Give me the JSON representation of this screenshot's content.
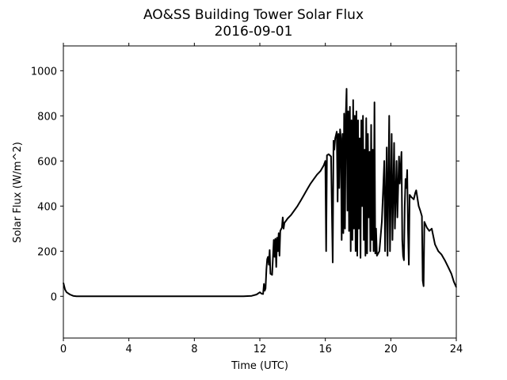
{
  "chart_data": {
    "type": "line",
    "title": "AO&SS Building Tower Solar Flux",
    "subtitle": "2016-09-01",
    "xlabel": "Time (UTC)",
    "ylabel": "Solar Flux (W/m^2)",
    "xlim": [
      0,
      24
    ],
    "ylim": [
      -185,
      1110
    ],
    "x_ticks": [
      0,
      4,
      8,
      12,
      16,
      20,
      24
    ],
    "y_ticks": [
      0,
      200,
      400,
      600,
      800,
      1000
    ],
    "grid": false,
    "legend": "none",
    "series": [
      {
        "color": "#000000",
        "points": [
          [
            0.0,
            60
          ],
          [
            0.1,
            30
          ],
          [
            0.2,
            18
          ],
          [
            0.4,
            8
          ],
          [
            0.6,
            2
          ],
          [
            0.8,
            0
          ],
          [
            2,
            0
          ],
          [
            4,
            0
          ],
          [
            6,
            0
          ],
          [
            8,
            0
          ],
          [
            10,
            0
          ],
          [
            11,
            0
          ],
          [
            11.5,
            2
          ],
          [
            11.8,
            8
          ],
          [
            12.0,
            18
          ],
          [
            12.1,
            12
          ],
          [
            12.2,
            10
          ],
          [
            12.25,
            55
          ],
          [
            12.3,
            25
          ],
          [
            12.35,
            35
          ],
          [
            12.4,
            120
          ],
          [
            12.45,
            165
          ],
          [
            12.5,
            175
          ],
          [
            12.55,
            140
          ],
          [
            12.6,
            205
          ],
          [
            12.65,
            100
          ],
          [
            12.75,
            95
          ],
          [
            12.85,
            250
          ],
          [
            12.9,
            175
          ],
          [
            12.95,
            255
          ],
          [
            13.0,
            130
          ],
          [
            13.05,
            260
          ],
          [
            13.1,
            200
          ],
          [
            13.15,
            280
          ],
          [
            13.2,
            180
          ],
          [
            13.25,
            290
          ],
          [
            13.35,
            305
          ],
          [
            13.4,
            350
          ],
          [
            13.45,
            300
          ],
          [
            13.5,
            325
          ],
          [
            13.7,
            345
          ],
          [
            13.9,
            360
          ],
          [
            14.1,
            380
          ],
          [
            14.3,
            400
          ],
          [
            14.5,
            425
          ],
          [
            14.7,
            450
          ],
          [
            14.9,
            475
          ],
          [
            15.1,
            500
          ],
          [
            15.3,
            520
          ],
          [
            15.5,
            540
          ],
          [
            15.7,
            555
          ],
          [
            15.9,
            580
          ],
          [
            16.0,
            600
          ],
          [
            16.05,
            200
          ],
          [
            16.1,
            625
          ],
          [
            16.2,
            630
          ],
          [
            16.35,
            620
          ],
          [
            16.45,
            150
          ],
          [
            16.5,
            690
          ],
          [
            16.55,
            650
          ],
          [
            16.6,
            700
          ],
          [
            16.7,
            730
          ],
          [
            16.75,
            420
          ],
          [
            16.8,
            720
          ],
          [
            16.85,
            480
          ],
          [
            16.9,
            740
          ],
          [
            16.95,
            700
          ],
          [
            17.0,
            250
          ],
          [
            17.05,
            720
          ],
          [
            17.1,
            280
          ],
          [
            17.15,
            810
          ],
          [
            17.2,
            300
          ],
          [
            17.25,
            800
          ],
          [
            17.3,
            920
          ],
          [
            17.35,
            380
          ],
          [
            17.4,
            820
          ],
          [
            17.45,
            290
          ],
          [
            17.5,
            840
          ],
          [
            17.55,
            200
          ],
          [
            17.6,
            780
          ],
          [
            17.65,
            250
          ],
          [
            17.7,
            870
          ],
          [
            17.75,
            300
          ],
          [
            17.8,
            800
          ],
          [
            17.85,
            200
          ],
          [
            17.9,
            820
          ],
          [
            17.95,
            180
          ],
          [
            18.0,
            780
          ],
          [
            18.05,
            300
          ],
          [
            18.1,
            700
          ],
          [
            18.15,
            170
          ],
          [
            18.2,
            780
          ],
          [
            18.25,
            400
          ],
          [
            18.3,
            800
          ],
          [
            18.35,
            250
          ],
          [
            18.4,
            650
          ],
          [
            18.45,
            180
          ],
          [
            18.5,
            790
          ],
          [
            18.55,
            190
          ],
          [
            18.6,
            720
          ],
          [
            18.65,
            350
          ],
          [
            18.7,
            640
          ],
          [
            18.75,
            200
          ],
          [
            18.8,
            760
          ],
          [
            18.85,
            250
          ],
          [
            18.9,
            650
          ],
          [
            18.95,
            200
          ],
          [
            19.0,
            860
          ],
          [
            19.05,
            190
          ],
          [
            19.1,
            300
          ],
          [
            19.15,
            180
          ],
          [
            19.3,
            200
          ],
          [
            19.45,
            330
          ],
          [
            19.6,
            600
          ],
          [
            19.65,
            200
          ],
          [
            19.75,
            660
          ],
          [
            19.8,
            180
          ],
          [
            19.9,
            800
          ],
          [
            19.95,
            200
          ],
          [
            20.05,
            720
          ],
          [
            20.1,
            250
          ],
          [
            20.2,
            680
          ],
          [
            20.25,
            300
          ],
          [
            20.35,
            600
          ],
          [
            20.4,
            350
          ],
          [
            20.5,
            620
          ],
          [
            20.55,
            500
          ],
          [
            20.65,
            640
          ],
          [
            20.7,
            250
          ],
          [
            20.75,
            180
          ],
          [
            20.8,
            160
          ],
          [
            20.85,
            400
          ],
          [
            20.9,
            520
          ],
          [
            20.95,
            480
          ],
          [
            21.0,
            560
          ],
          [
            21.05,
            300
          ],
          [
            21.1,
            140
          ],
          [
            21.15,
            450
          ],
          [
            21.25,
            440
          ],
          [
            21.4,
            430
          ],
          [
            21.5,
            460
          ],
          [
            21.55,
            470
          ],
          [
            21.7,
            400
          ],
          [
            21.8,
            380
          ],
          [
            21.9,
            355
          ],
          [
            21.95,
            70
          ],
          [
            22.0,
            45
          ],
          [
            22.05,
            330
          ],
          [
            22.2,
            305
          ],
          [
            22.35,
            290
          ],
          [
            22.5,
            300
          ],
          [
            22.7,
            230
          ],
          [
            22.9,
            200
          ],
          [
            23.1,
            185
          ],
          [
            23.3,
            160
          ],
          [
            23.5,
            130
          ],
          [
            23.7,
            100
          ],
          [
            23.85,
            65
          ],
          [
            24.0,
            40
          ]
        ]
      }
    ]
  }
}
